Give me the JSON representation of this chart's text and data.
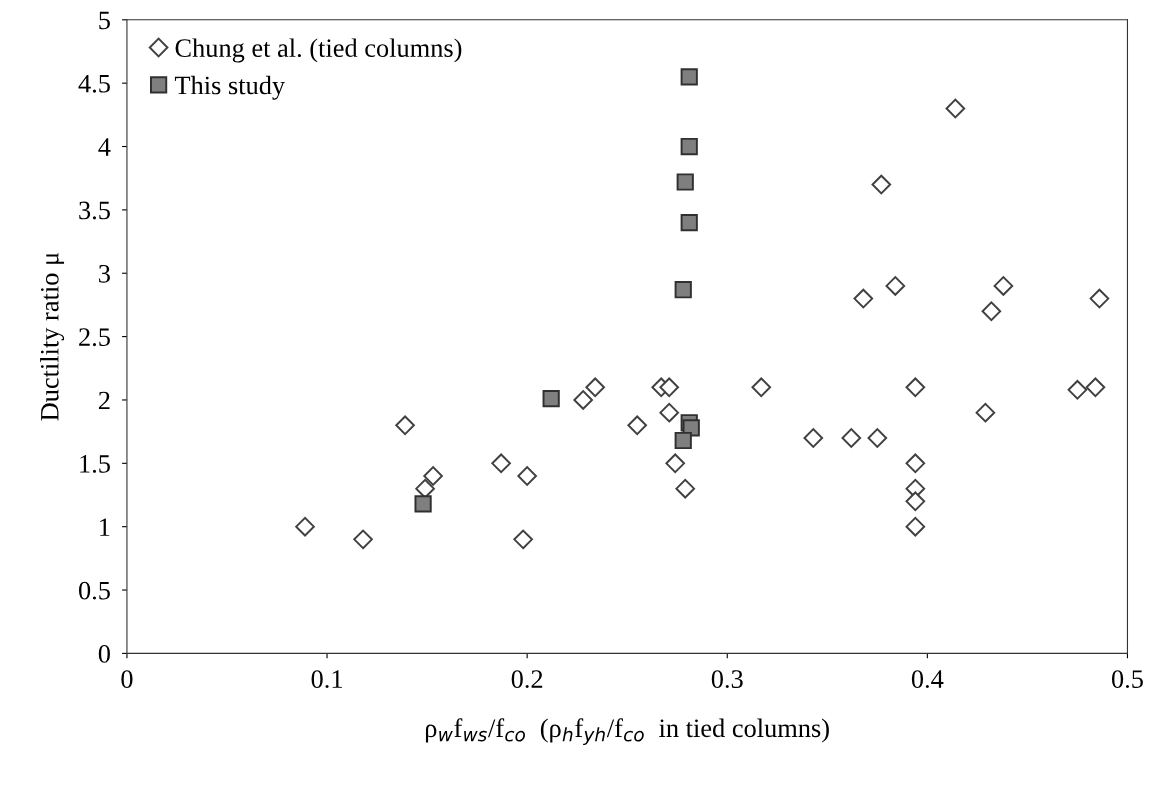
{
  "chart_data": {
    "type": "scatter",
    "xlabel": "ρ$_{w}$f$_{ws}$/f$_{co}$  (ρ$_{h}$f$_{yh}$/f$_{co}$  in tied columns)",
    "ylabel": "Ductility ratio μ",
    "xlim": [
      0,
      0.5
    ],
    "xticks": [
      0,
      0.1,
      0.2,
      0.3,
      0.4,
      0.5
    ],
    "ylim": [
      0,
      5
    ],
    "yticks": [
      0,
      0.5,
      1,
      1.5,
      2,
      2.5,
      3,
      3.5,
      4,
      4.5,
      5
    ],
    "grid": false,
    "legend": "top left",
    "series": [
      {
        "name": "Chung et al. (tied columns)",
        "color": "#404040",
        "marker": "diamond",
        "x": [
          0.089,
          0.118,
          0.139,
          0.149,
          0.153,
          0.187,
          0.2,
          0.198,
          0.228,
          0.234,
          0.255,
          0.267,
          0.271,
          0.271,
          0.274,
          0.279,
          0.317,
          0.343,
          0.362,
          0.375,
          0.368,
          0.384,
          0.377,
          0.394,
          0.394,
          0.394,
          0.394,
          0.394,
          0.414,
          0.438,
          0.432,
          0.429,
          0.475,
          0.484,
          0.486
        ],
        "values": [
          1.0,
          0.9,
          1.8,
          1.3,
          1.4,
          1.5,
          1.4,
          0.9,
          2.0,
          2.1,
          1.8,
          2.1,
          2.1,
          1.9,
          1.5,
          1.3,
          2.1,
          1.7,
          1.7,
          1.7,
          2.8,
          2.9,
          3.7,
          2.1,
          1.5,
          1.3,
          1.2,
          1.0,
          4.3,
          2.9,
          2.7,
          1.9,
          2.08,
          2.1,
          2.8
        ]
      },
      {
        "name": "This study",
        "color": "#7f7f7f",
        "marker": "square",
        "x": [
          0.148,
          0.212,
          0.281,
          0.281,
          0.279,
          0.281,
          0.278,
          0.281,
          0.282,
          0.278
        ],
        "values": [
          1.18,
          2.01,
          4.55,
          4.0,
          3.72,
          3.4,
          2.87,
          1.82,
          1.78,
          1.68
        ]
      }
    ]
  }
}
